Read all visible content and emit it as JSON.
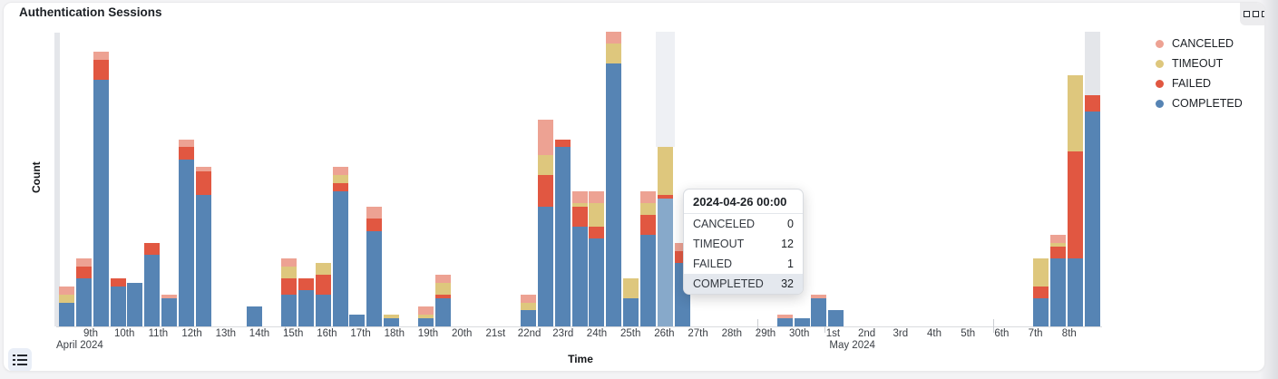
{
  "panel": {
    "title": "Authentication Sessions",
    "menu_icon": "panel-menu-squares",
    "legend_toggle_icon": "list"
  },
  "tooltip": {
    "title": "2024-04-26 00:00",
    "rows": [
      {
        "label": "CANCELED",
        "value": "0"
      },
      {
        "label": "TIMEOUT",
        "value": "12"
      },
      {
        "label": "FAILED",
        "value": "1"
      },
      {
        "label": "COMPLETED",
        "value": "32"
      }
    ],
    "highlighted_row": "COMPLETED"
  },
  "chart_data": {
    "type": "bar",
    "stacked": true,
    "interval": "12h",
    "title": "Authentication Sessions",
    "xlabel": "Time",
    "ylabel": "Count",
    "ylim": [
      0,
      74
    ],
    "grid": false,
    "legend_position": "right",
    "series_order_bottom_to_top": [
      "COMPLETED",
      "FAILED",
      "TIMEOUT",
      "CANCELED"
    ],
    "legend": [
      {
        "label": "CANCELED",
        "color": "#EDA293"
      },
      {
        "label": "TIMEOUT",
        "color": "#DEC77D"
      },
      {
        "label": "FAILED",
        "color": "#E15741"
      },
      {
        "label": "COMPLETED",
        "color": "#5684B4"
      }
    ],
    "colors": {
      "CANCELED": "#EDA293",
      "TIMEOUT": "#DEC77D",
      "FAILED": "#E15741",
      "COMPLETED": "#5684B4",
      "COMPLETED_highlight": "#87A9CA",
      "out_of_range": "#E4E6EA",
      "hover_shadow": "#EEF0F4"
    },
    "x_axis": {
      "tick_labels": [
        "9th",
        "10th",
        "11th",
        "12th",
        "13th",
        "14th",
        "15th",
        "16th",
        "17th",
        "18th",
        "19th",
        "20th",
        "21st",
        "22nd",
        "23rd",
        "24th",
        "25th",
        "26th",
        "27th",
        "28th",
        "29th",
        "30th",
        "1st",
        "2nd",
        "3rd",
        "4th",
        "5th",
        "6th",
        "7th",
        "8th"
      ],
      "month_labels": [
        {
          "text": "April 2024",
          "tick_index": 0
        },
        {
          "text": "May 2024",
          "tick_index": 22
        }
      ],
      "major_ticks": [
        "15th",
        "22nd",
        "29th",
        "1st",
        "6th"
      ]
    },
    "bars": [
      {
        "time": "2024-04-08 00:00",
        "render": "clipped_gray"
      },
      {
        "slot": 0,
        "time": "2024-04-08 12:00",
        "CANCELED": 2,
        "TIMEOUT": 2,
        "FAILED": 0,
        "COMPLETED": 6
      },
      {
        "slot": 1,
        "time": "2024-04-09 00:00",
        "CANCELED": 2,
        "TIMEOUT": 0,
        "FAILED": 3,
        "COMPLETED": 12
      },
      {
        "slot": 2,
        "time": "2024-04-09 12:00",
        "CANCELED": 2,
        "TIMEOUT": 0,
        "FAILED": 5,
        "COMPLETED": 62
      },
      {
        "slot": 3,
        "time": "2024-04-10 00:00",
        "CANCELED": 0,
        "TIMEOUT": 0,
        "FAILED": 2,
        "COMPLETED": 10
      },
      {
        "slot": 4,
        "time": "2024-04-10 12:00",
        "CANCELED": 0,
        "TIMEOUT": 0,
        "FAILED": 0,
        "COMPLETED": 11
      },
      {
        "slot": 5,
        "time": "2024-04-11 00:00",
        "CANCELED": 0,
        "TIMEOUT": 0,
        "FAILED": 3,
        "COMPLETED": 18
      },
      {
        "slot": 6,
        "time": "2024-04-11 12:00",
        "CANCELED": 1,
        "TIMEOUT": 0,
        "FAILED": 0,
        "COMPLETED": 7
      },
      {
        "slot": 7,
        "time": "2024-04-12 00:00",
        "CANCELED": 2,
        "TIMEOUT": 0,
        "FAILED": 3,
        "COMPLETED": 42
      },
      {
        "slot": 8,
        "time": "2024-04-12 12:00",
        "CANCELED": 1,
        "TIMEOUT": 0,
        "FAILED": 6,
        "COMPLETED": 33
      },
      {
        "slot": 11,
        "time": "2024-04-14 00:00",
        "CANCELED": 0,
        "TIMEOUT": 0,
        "FAILED": 0,
        "COMPLETED": 5
      },
      {
        "slot": 13,
        "time": "2024-04-15 00:00",
        "CANCELED": 2,
        "TIMEOUT": 3,
        "FAILED": 4,
        "COMPLETED": 8
      },
      {
        "slot": 14,
        "time": "2024-04-15 12:00",
        "CANCELED": 0,
        "TIMEOUT": 0,
        "FAILED": 3,
        "COMPLETED": 9
      },
      {
        "slot": 15,
        "time": "2024-04-16 00:00",
        "CANCELED": 0,
        "TIMEOUT": 3,
        "FAILED": 5,
        "COMPLETED": 8
      },
      {
        "slot": 16,
        "time": "2024-04-16 12:00",
        "CANCELED": 2,
        "TIMEOUT": 2,
        "FAILED": 2,
        "COMPLETED": 34
      },
      {
        "slot": 17,
        "time": "2024-04-17 00:00",
        "CANCELED": 0,
        "TIMEOUT": 0,
        "FAILED": 0,
        "COMPLETED": 3
      },
      {
        "slot": 18,
        "time": "2024-04-17 12:00",
        "CANCELED": 3,
        "TIMEOUT": 0,
        "FAILED": 3,
        "COMPLETED": 24
      },
      {
        "slot": 19,
        "time": "2024-04-18 00:00",
        "CANCELED": 0,
        "TIMEOUT": 1,
        "FAILED": 0,
        "COMPLETED": 2
      },
      {
        "slot": 21,
        "time": "2024-04-19 00:00",
        "CANCELED": 2,
        "TIMEOUT": 1,
        "FAILED": 0,
        "COMPLETED": 2
      },
      {
        "slot": 22,
        "time": "2024-04-19 12:00",
        "CANCELED": 2,
        "TIMEOUT": 3,
        "FAILED": 1,
        "COMPLETED": 7
      },
      {
        "slot": 27,
        "time": "2024-04-22 00:00",
        "CANCELED": 2,
        "TIMEOUT": 2,
        "FAILED": 0,
        "COMPLETED": 4
      },
      {
        "slot": 28,
        "time": "2024-04-22 12:00",
        "CANCELED": 9,
        "TIMEOUT": 5,
        "FAILED": 8,
        "COMPLETED": 30
      },
      {
        "slot": 29,
        "time": "2024-04-23 00:00",
        "CANCELED": 0,
        "TIMEOUT": 0,
        "FAILED": 2,
        "COMPLETED": 45
      },
      {
        "slot": 30,
        "time": "2024-04-23 12:00",
        "CANCELED": 3,
        "TIMEOUT": 1,
        "FAILED": 5,
        "COMPLETED": 25
      },
      {
        "slot": 31,
        "time": "2024-04-24 00:00",
        "CANCELED": 3,
        "TIMEOUT": 6,
        "FAILED": 3,
        "COMPLETED": 22
      },
      {
        "slot": 32,
        "time": "2024-04-24 12:00",
        "CANCELED": 3,
        "TIMEOUT": 5,
        "FAILED": 0,
        "COMPLETED": 66
      },
      {
        "slot": 33,
        "time": "2024-04-25 00:00",
        "CANCELED": 0,
        "TIMEOUT": 5,
        "FAILED": 0,
        "COMPLETED": 7
      },
      {
        "slot": 34,
        "time": "2024-04-25 12:00",
        "CANCELED": 3,
        "TIMEOUT": 3,
        "FAILED": 5,
        "COMPLETED": 23
      },
      {
        "slot": 35,
        "time": "2024-04-26 00:00",
        "CANCELED": 0,
        "TIMEOUT": 12,
        "FAILED": 1,
        "COMPLETED": 32,
        "highlight": true
      },
      {
        "slot": 36,
        "time": "2024-04-26 12:00",
        "CANCELED": 2,
        "TIMEOUT": 0,
        "FAILED": 3,
        "COMPLETED": 16
      },
      {
        "slot": 42,
        "time": "2024-04-29 12:00",
        "CANCELED": 1,
        "TIMEOUT": 0,
        "FAILED": 0,
        "COMPLETED": 2
      },
      {
        "slot": 43,
        "time": "2024-04-30 00:00",
        "CANCELED": 0,
        "TIMEOUT": 0,
        "FAILED": 0,
        "COMPLETED": 2
      },
      {
        "slot": 44,
        "time": "2024-04-30 12:00",
        "CANCELED": 1,
        "TIMEOUT": 0,
        "FAILED": 0,
        "COMPLETED": 7
      },
      {
        "slot": 45,
        "time": "2024-05-01 00:00",
        "CANCELED": 0,
        "TIMEOUT": 0,
        "FAILED": 0,
        "COMPLETED": 4
      },
      {
        "slot": 57,
        "time": "2024-05-07 00:00",
        "CANCELED": 0,
        "TIMEOUT": 7,
        "FAILED": 3,
        "COMPLETED": 7
      },
      {
        "slot": 58,
        "time": "2024-05-07 12:00",
        "CANCELED": 2,
        "TIMEOUT": 1,
        "FAILED": 3,
        "COMPLETED": 17
      },
      {
        "slot": 59,
        "time": "2024-05-08 00:00",
        "CANCELED": 0,
        "TIMEOUT": 19,
        "FAILED": 27,
        "COMPLETED": 17
      },
      {
        "slot": 60,
        "time": "2024-05-08 12:00",
        "CANCELED": 0,
        "TIMEOUT": 0,
        "FAILED": 4,
        "COMPLETED": 54,
        "gray_top": 16
      }
    ]
  }
}
